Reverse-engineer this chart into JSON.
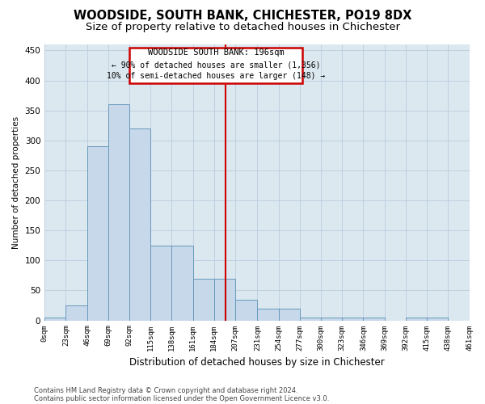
{
  "title": "WOODSIDE, SOUTH BANK, CHICHESTER, PO19 8DX",
  "subtitle": "Size of property relative to detached houses in Chichester",
  "xlabel": "Distribution of detached houses by size in Chichester",
  "ylabel": "Number of detached properties",
  "footer1": "Contains HM Land Registry data © Crown copyright and database right 2024.",
  "footer2": "Contains public sector information licensed under the Open Government Licence v3.0.",
  "annotation_title": "WOODSIDE SOUTH BANK: 196sqm",
  "annotation_line1": "← 90% of detached houses are smaller (1,356)",
  "annotation_line2": "10% of semi-detached houses are larger (148) →",
  "bar_edges": [
    0,
    23,
    46,
    69,
    92,
    115,
    138,
    161,
    184,
    207,
    231,
    254,
    277,
    300,
    323,
    346,
    369,
    392,
    415,
    438,
    461
  ],
  "bar_heights": [
    5,
    25,
    290,
    360,
    320,
    125,
    125,
    70,
    70,
    35,
    20,
    20,
    5,
    5,
    5,
    5,
    0,
    5,
    5,
    0
  ],
  "bar_color": "#c8d8eb",
  "bar_edge_color": "#6699bb",
  "vline_color": "#cc0000",
  "vline_x": 196,
  "annotation_box_color": "#cc0000",
  "annotation_bg": "#ffffff",
  "ylim_max": 460,
  "yticks": [
    0,
    50,
    100,
    150,
    200,
    250,
    300,
    350,
    400,
    450
  ],
  "grid_color": "#bbccdd",
  "bg_color": "#dce8f0",
  "title_fontsize": 10.5,
  "subtitle_fontsize": 9.5,
  "tick_labels": [
    "0sqm",
    "23sqm",
    "46sqm",
    "69sqm",
    "92sqm",
    "115sqm",
    "138sqm",
    "161sqm",
    "184sqm",
    "207sqm",
    "231sqm",
    "254sqm",
    "277sqm",
    "300sqm",
    "323sqm",
    "346sqm",
    "369sqm",
    "392sqm",
    "415sqm",
    "438sqm",
    "461sqm"
  ]
}
